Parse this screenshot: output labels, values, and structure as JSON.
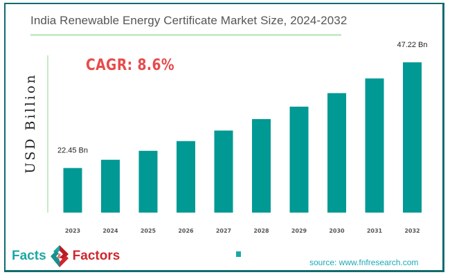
{
  "chart_data": {
    "type": "bar",
    "title": "India Renewable Energy Certificate Market Size, 2024-2032",
    "ylabel": "USD Billion",
    "xlabel": "",
    "categories": [
      "2023",
      "2024",
      "2025",
      "2026",
      "2027",
      "2028",
      "2029",
      "2030",
      "2031",
      "2032"
    ],
    "values": [
      22.45,
      24.38,
      26.48,
      28.76,
      31.23,
      33.92,
      36.83,
      40.0,
      43.44,
      47.22
    ],
    "data_labels": [
      {
        "index": 0,
        "text": "22.45 Bn"
      },
      {
        "index": 9,
        "text": "47.22 Bn"
      }
    ],
    "ylim": [
      12,
      50
    ],
    "grid": false,
    "bar_color": "#009994",
    "annotation": "CAGR: 8.6%"
  },
  "branding": {
    "logo_left": "Facts",
    "logo_right": "Factors",
    "logo_amp": "&"
  },
  "source": "source: www.fnfresearch.com",
  "colors": {
    "frame": "#0f6b6e",
    "cagr": "#e84a4a",
    "logo_teal": "#1aa8a4",
    "logo_red": "#d0262e"
  }
}
